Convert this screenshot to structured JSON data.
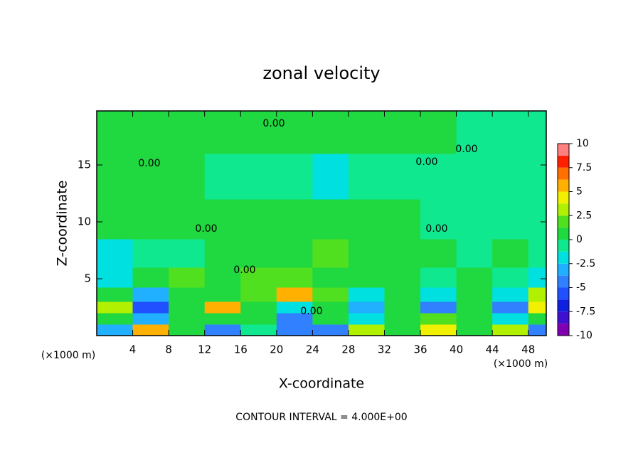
{
  "chart_data": {
    "type": "contourf",
    "title": "zonal velocity",
    "x_label": "X-coordinate",
    "y_label": "Z-coordinate",
    "x_unit": "(×1000 m)",
    "y_unit": "(×1000 m)",
    "footer": "CONTOUR INTERVAL = 4.000E+00",
    "contour_labels": [
      "0.00",
      "0.00",
      "0.00",
      "0.00",
      "0.00",
      "0.00",
      "0.00",
      "0.00"
    ],
    "xlim": [
      0,
      50
    ],
    "ylim": [
      0,
      19.75
    ],
    "xticks": [
      4,
      8,
      12,
      16,
      20,
      24,
      28,
      32,
      36,
      40,
      44,
      48
    ],
    "yticks": [
      5,
      10,
      15
    ],
    "x": [
      2,
      6,
      10,
      14,
      18,
      22,
      26,
      30,
      34,
      38,
      42,
      46,
      50
    ],
    "y": [
      0.5,
      1.5,
      2.5,
      3.5,
      5,
      7,
      10,
      14,
      18
    ],
    "z": [
      [
        -3,
        5,
        0,
        -4,
        -1,
        -4,
        -5,
        3,
        0,
        4,
        1,
        3,
        -4
      ],
      [
        0,
        -3,
        1,
        0,
        0,
        -5,
        0,
        -2,
        0,
        2,
        0,
        -2,
        0
      ],
      [
        3,
        -6,
        0,
        5,
        0,
        -2,
        1,
        -3,
        0,
        -4,
        0,
        -5,
        4
      ],
      [
        0,
        -3,
        0,
        1,
        2,
        5,
        2,
        -2,
        0,
        -2,
        0,
        -2,
        3
      ],
      [
        -2,
        0,
        2,
        0,
        1.5,
        2,
        1,
        0,
        0,
        -1,
        0,
        -1,
        -2
      ],
      [
        -2,
        -1,
        -1,
        0,
        1,
        0,
        1.5,
        1,
        0,
        0,
        -1,
        0,
        -1
      ],
      [
        0.5,
        1,
        0,
        1,
        0.5,
        1,
        0.5,
        0,
        0.5,
        -0.5,
        -1,
        -0.5,
        -1
      ],
      [
        0,
        1,
        0,
        -0.5,
        -1,
        -1,
        -1.5,
        -1,
        -1,
        -1,
        -0.5,
        -1,
        -1
      ],
      [
        0.5,
        0.5,
        0,
        0.5,
        1,
        0.5,
        0,
        0,
        0.5,
        0,
        -0.5,
        -1,
        -1
      ]
    ],
    "colorbar": {
      "levels": [
        -10,
        -8.75,
        -7.5,
        -6.25,
        -5,
        -3.75,
        -2.5,
        -1.25,
        0,
        1.25,
        2.5,
        3.75,
        5,
        6.25,
        7.5,
        8.75,
        10
      ],
      "colors": [
        "#8000b0",
        "#4010d0",
        "#1020e0",
        "#2050ff",
        "#3080ff",
        "#20b0ff",
        "#00e0e0",
        "#10e890",
        "#20d840",
        "#50e020",
        "#b0f000",
        "#f0f000",
        "#ffb000",
        "#ff7000",
        "#ff2000",
        "#ff8080"
      ],
      "ticks": [
        -10,
        -7.5,
        -5,
        -2.5,
        0,
        2.5,
        5,
        7.5,
        10
      ]
    }
  }
}
